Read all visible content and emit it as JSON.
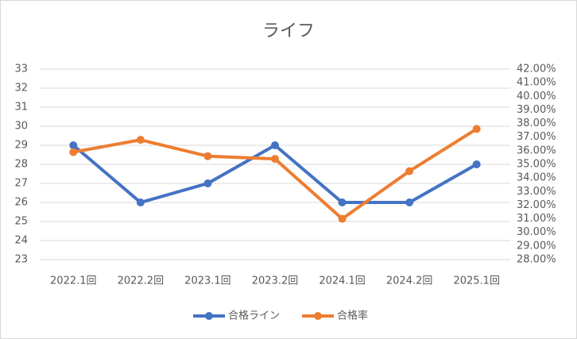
{
  "chart_data": {
    "type": "line",
    "title": "ライフ",
    "categories": [
      "2022.1回",
      "2022.2回",
      "2023.1回",
      "2023.2回",
      "2024.1回",
      "2024.2回",
      "2025.1回"
    ],
    "series": [
      {
        "name": "合格ライン",
        "color": "#4472c4",
        "values": [
          29,
          26,
          27,
          29,
          26,
          26,
          28
        ]
      },
      {
        "name": "合格率",
        "color": "#ed7d31",
        "axis": "y2",
        "values": [
          35.9,
          36.8,
          35.6,
          35.4,
          31.0,
          34.5,
          37.6
        ]
      }
    ],
    "ylim": [
      23,
      33
    ],
    "yticks": [
      23,
      24,
      25,
      26,
      27,
      28,
      29,
      30,
      31,
      32,
      33
    ],
    "y2lim": [
      28,
      42
    ],
    "y2ticks": [
      {
        "value": 28,
        "label": "28.00%"
      },
      {
        "value": 29,
        "label": "29.00%"
      },
      {
        "value": 30,
        "label": "30.00%"
      },
      {
        "value": 31,
        "label": "31.00%"
      },
      {
        "value": 32,
        "label": "32.00%"
      },
      {
        "value": 33,
        "label": "33.00%"
      },
      {
        "value": 34,
        "label": "34.00%"
      },
      {
        "value": 35,
        "label": "35.00%"
      },
      {
        "value": 36,
        "label": "36.00%"
      },
      {
        "value": 37,
        "label": "37.00%"
      },
      {
        "value": 38,
        "label": "38.00%"
      },
      {
        "value": 39,
        "label": "39.00%"
      },
      {
        "value": 40,
        "label": "40.00%"
      },
      {
        "value": 41,
        "label": "41.00%"
      },
      {
        "value": 42,
        "label": "42.00%"
      }
    ],
    "grid": true,
    "legend": "bottom"
  }
}
